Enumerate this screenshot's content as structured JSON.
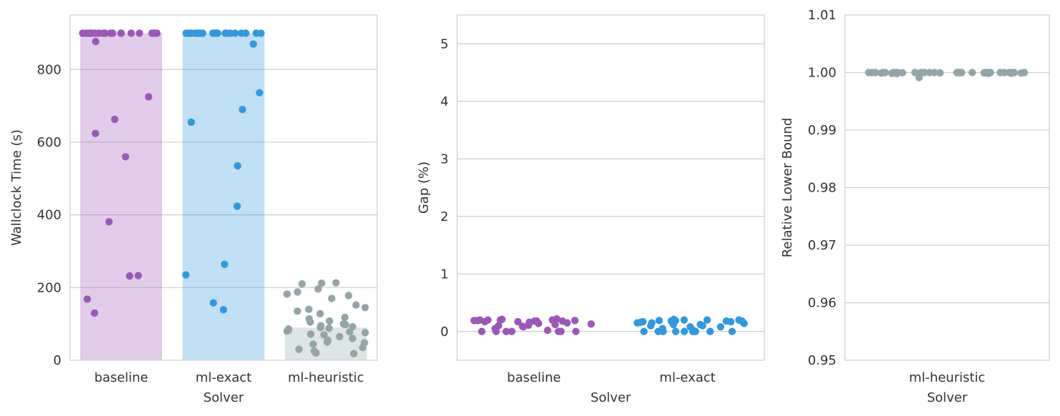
{
  "chart_data": [
    {
      "type": "bar",
      "overlay": "strip",
      "xlabel": "Solver",
      "ylabel": "Wallclock Time (s)",
      "ylim": [
        0,
        950
      ],
      "yticks": [
        0,
        200,
        400,
        600,
        800
      ],
      "grid": true,
      "categories": [
        "baseline",
        "ml-exact",
        "ml-heuristic"
      ],
      "values": [
        900,
        900,
        90
      ],
      "colors": [
        "#9b59b6",
        "#3498db",
        "#95a5a6"
      ],
      "points": [
        [
          900,
          900,
          900,
          900,
          900,
          900,
          900,
          900,
          900,
          900,
          900,
          900,
          900,
          900,
          900,
          900,
          900,
          900,
          900,
          900,
          900,
          900,
          877,
          725,
          663,
          624,
          560,
          381,
          233,
          232,
          168,
          130
        ],
        [
          900,
          900,
          900,
          900,
          900,
          900,
          900,
          900,
          900,
          900,
          900,
          900,
          900,
          900,
          900,
          900,
          900,
          900,
          900,
          900,
          900,
          900,
          870,
          736,
          690,
          655,
          535,
          424,
          264,
          235,
          158,
          139
        ],
        [
          212,
          213,
          210,
          196,
          188,
          182,
          178,
          170,
          152,
          145,
          140,
          135,
          128,
          118,
          114,
          108,
          105,
          100,
          98,
          95,
          92,
          90,
          88,
          86,
          82,
          80,
          78,
          76,
          72,
          70,
          65,
          60,
          55,
          50,
          48,
          44,
          35,
          30,
          25,
          20,
          18
        ]
      ]
    },
    {
      "type": "scatter",
      "xlabel": "Solver",
      "ylabel": "Gap (%)",
      "ylim": [
        -0.5,
        5.5
      ],
      "yticks": [
        0,
        1,
        2,
        3,
        4,
        5
      ],
      "grid": true,
      "categories": [
        "baseline",
        "ml-exact"
      ],
      "colors": [
        "#9b59b6",
        "#3498db"
      ],
      "points": [
        [
          0.2,
          0.19,
          0.18,
          0.2,
          0.21,
          0.17,
          0.15,
          0.2,
          0.18,
          0.12,
          0.1,
          0.08,
          0.05,
          0.02,
          0.0,
          0.0,
          0.0,
          0.0,
          0.0,
          0.0,
          0.0,
          0.14,
          0.16,
          0.19,
          0.2,
          0.22,
          0.18,
          0.11,
          0.09,
          0.13,
          0.17,
          0.19
        ],
        [
          0.0,
          0.0,
          0.0,
          0.0,
          0.0,
          0.0,
          0.0,
          0.0,
          0.0,
          0.02,
          0.05,
          0.08,
          0.1,
          0.12,
          0.15,
          0.17,
          0.18,
          0.19,
          0.2,
          0.21,
          0.2,
          0.18,
          0.17,
          0.16,
          0.14,
          0.12,
          0.1,
          0.08,
          0.15,
          0.19,
          0.2,
          0.18
        ]
      ]
    },
    {
      "type": "scatter",
      "xlabel": "Solver",
      "ylabel": "Relative Lower Bound",
      "ylim": [
        0.95,
        1.01
      ],
      "yticks": [
        "0.95",
        "0.96",
        "0.97",
        "0.98",
        "0.99",
        "1.00",
        "1.01"
      ],
      "grid": true,
      "categories": [
        "ml-heuristic"
      ],
      "colors": [
        "#95a5a6"
      ],
      "points": [
        [
          1.0,
          1.0,
          1.0,
          0.99995,
          1.0,
          1.0,
          1.0,
          0.99992,
          1.0,
          1.0,
          1.0,
          0.99988,
          1.0,
          1.0,
          1.0,
          0.99985,
          1.0,
          1.0,
          0.9999,
          1.0,
          1.0,
          1.0,
          1.0,
          0.9998,
          1.0,
          1.0,
          0.99994,
          1.0,
          1.0,
          0.99912,
          1.0,
          1.0,
          0.99996,
          1.0,
          1.0,
          1.0,
          0.99986,
          1.0,
          1.0,
          1.0
        ]
      ]
    }
  ]
}
